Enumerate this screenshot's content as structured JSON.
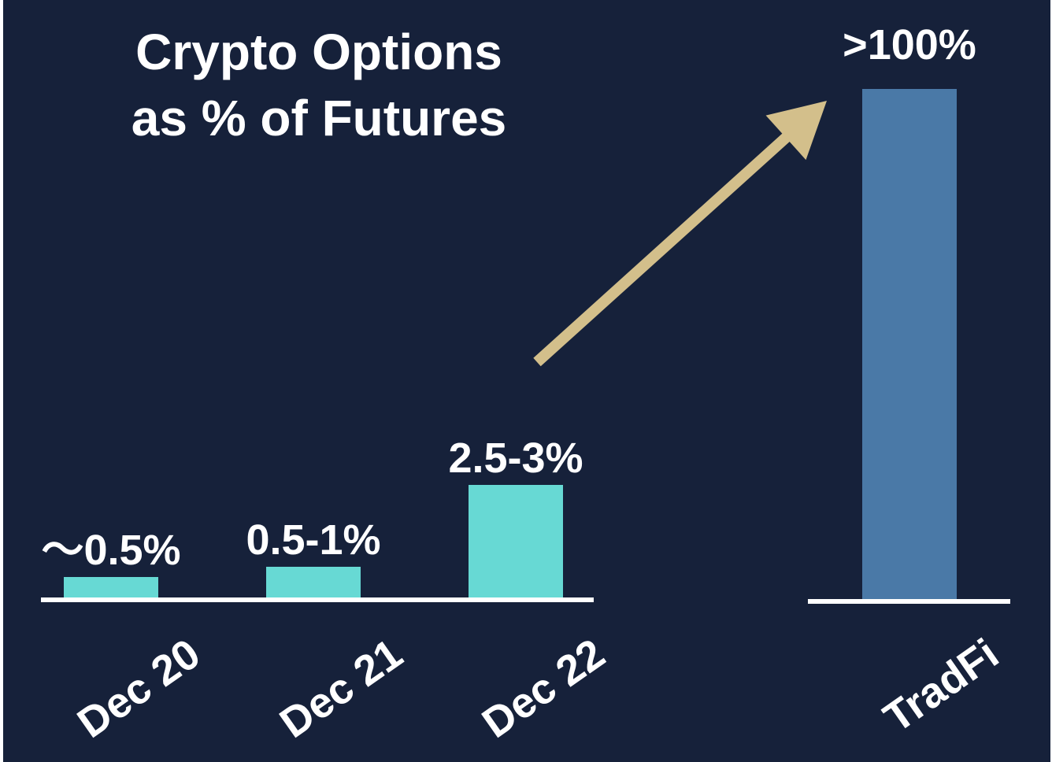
{
  "chart_data": {
    "type": "bar",
    "title": "Crypto Options as % of Futures",
    "title_lines": [
      "Crypto Options",
      "as % of Futures"
    ],
    "xlabel": "",
    "ylabel": "",
    "grid": false,
    "legend": "none",
    "unit": "%",
    "categories": [
      "Dec 20",
      "Dec 21",
      "Dec 22",
      "TradFi"
    ],
    "values": [
      0.5,
      0.75,
      2.75,
      100
    ],
    "value_labels": [
      "～0.5%",
      "0.5-1%",
      "2.5-3%",
      ">100%"
    ],
    "annotation": "arrow from Dec 22 toward TradFi",
    "colors": {
      "background": "#16213a",
      "crypto_bar": "#67d9d4",
      "tradfi_bar": "#4a79a7",
      "arrow": "#d3bf8b",
      "text": "#ffffff",
      "baseline": "#ffffff"
    }
  }
}
